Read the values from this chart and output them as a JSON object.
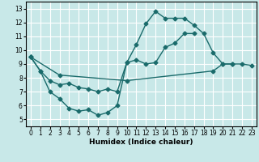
{
  "xlabel": "Humidex (Indice chaleur)",
  "bg_color": "#c8e8e8",
  "grid_color": "#ffffff",
  "line_color": "#1a6b6b",
  "xlim": [
    -0.5,
    23.5
  ],
  "ylim": [
    4.5,
    13.5
  ],
  "xticks": [
    0,
    1,
    2,
    3,
    4,
    5,
    6,
    7,
    8,
    9,
    10,
    11,
    12,
    13,
    14,
    15,
    16,
    17,
    18,
    19,
    20,
    21,
    22,
    23
  ],
  "yticks": [
    5,
    6,
    7,
    8,
    9,
    10,
    11,
    12,
    13
  ],
  "line1_x": [
    0,
    1,
    2,
    3,
    4,
    5,
    6,
    7,
    8,
    9,
    10,
    11,
    12,
    13,
    14,
    15,
    16,
    17,
    18,
    19,
    20,
    21
  ],
  "line1_y": [
    9.5,
    8.5,
    7.0,
    6.5,
    5.8,
    5.6,
    5.7,
    5.3,
    5.5,
    6.0,
    9.1,
    10.4,
    11.9,
    12.8,
    12.3,
    12.3,
    12.3,
    11.8,
    11.2,
    9.8,
    9.0,
    9.0
  ],
  "line2_x": [
    0,
    1,
    2,
    3,
    4,
    5,
    6,
    7,
    8,
    9,
    10,
    11,
    12,
    13,
    14,
    15,
    16,
    17
  ],
  "line2_y": [
    9.5,
    8.5,
    7.8,
    7.5,
    7.6,
    7.3,
    7.2,
    7.0,
    7.2,
    7.0,
    9.1,
    9.3,
    9.0,
    9.1,
    10.2,
    10.5,
    11.2,
    11.2
  ],
  "line3_x": [
    0,
    3,
    10,
    19,
    20,
    21,
    22,
    23
  ],
  "line3_y": [
    9.5,
    8.2,
    7.8,
    8.5,
    9.0,
    9.0,
    9.0,
    8.9
  ],
  "marker_size": 2.5,
  "line_width": 1.0
}
